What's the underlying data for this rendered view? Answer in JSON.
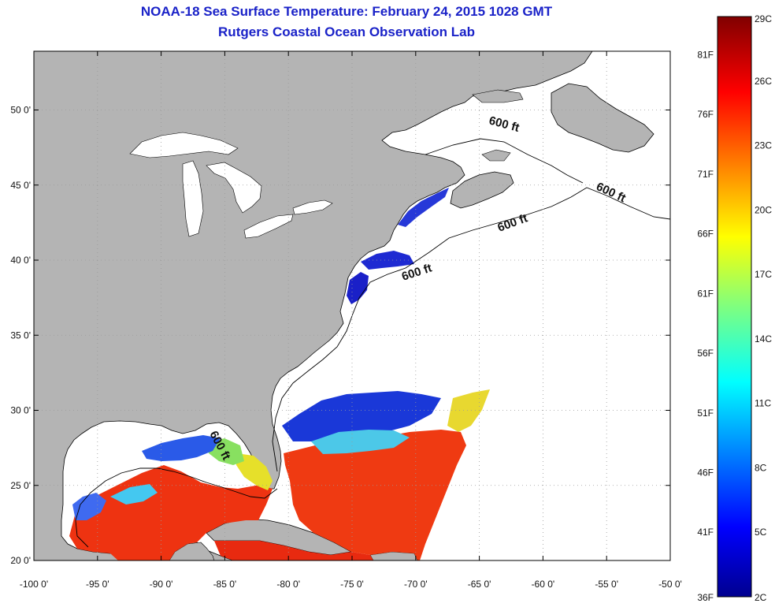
{
  "header": {
    "title": "NOAA-18 Sea Surface Temperature:  February 24, 2015 1028 GMT",
    "subtitle": "Rutgers Coastal Ocean Observation Lab"
  },
  "map": {
    "lon_ticks": [
      "-100 0'",
      "-95 0'",
      "-90 0'",
      "-85 0'",
      "-80 0'",
      "-75 0'",
      "-70 0'",
      "-65 0'",
      "-60 0'",
      "-55 0'",
      "-50 0'"
    ],
    "lon_values": [
      -100,
      -95,
      -90,
      -85,
      -80,
      -75,
      -70,
      -65,
      -60,
      -55,
      -50
    ],
    "lat_ticks": [
      "20 0'",
      "25 0'",
      "30 0'",
      "35 0'",
      "40 0'",
      "45 0'",
      "50 0'"
    ],
    "lat_values": [
      20,
      25,
      30,
      35,
      40,
      45,
      50
    ],
    "depth_label": "600 ft",
    "colors": {
      "land": "#b4b4b4",
      "no_data": "#ffffff",
      "frame": "#000000",
      "grid": "#9a9a9a"
    }
  },
  "colorbar": {
    "celsius_labels": [
      "29C",
      "26C",
      "23C",
      "20C",
      "17C",
      "14C",
      "11C",
      "8C",
      "5C",
      "2C"
    ],
    "celsius_values": [
      29,
      26,
      23,
      20,
      17,
      14,
      11,
      8,
      5,
      2
    ],
    "fahrenheit_labels": [
      "81F",
      "76F",
      "71F",
      "66F",
      "61F",
      "56F",
      "51F",
      "46F",
      "41F",
      "36F"
    ],
    "fahrenheit_values": [
      81,
      76,
      71,
      66,
      61,
      56,
      51,
      46,
      41,
      36
    ],
    "range_c": [
      2,
      29
    ],
    "colormap": "jet"
  }
}
